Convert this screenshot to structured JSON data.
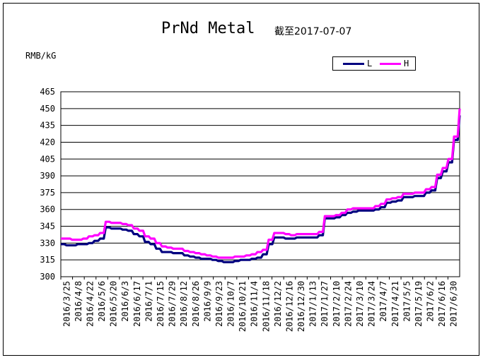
{
  "chart_data": {
    "type": "line",
    "title": "PrNd Metal",
    "subtitle": "截至2017-07-07",
    "ylabel": "RMB/kG",
    "ylim": [
      300,
      465
    ],
    "yticks": [
      300,
      315,
      330,
      345,
      360,
      375,
      390,
      405,
      420,
      435,
      450,
      465
    ],
    "grid": true,
    "legend_position": "top-right",
    "x_ticks": [
      "2016/3/25",
      "2016/4/8",
      "2016/4/22",
      "2016/5/6",
      "2016/5/20",
      "2016/6/3",
      "2016/6/17",
      "2016/7/1",
      "2016/7/15",
      "2016/7/29",
      "2016/8/12",
      "2016/8/26",
      "2016/9/9",
      "2016/9/23",
      "2016/10/7",
      "2016/10/21",
      "2016/11/4",
      "2016/11/18",
      "2016/12/2",
      "2016/12/16",
      "2016/12/30",
      "2017/1/13",
      "2017/1/27",
      "2017/2/10",
      "2017/2/24",
      "2017/3/10",
      "2017/3/24",
      "2017/4/7",
      "2017/4/21",
      "2017/5/5",
      "2017/5/19",
      "2017/6/2",
      "2017/6/16",
      "2017/6/30"
    ],
    "series": [
      {
        "name": "L",
        "color": "#000080",
        "values": [
          329,
          328,
          328,
          329,
          329,
          330,
          332,
          334,
          344,
          343,
          343,
          342,
          341,
          338,
          336,
          331,
          329,
          325,
          322,
          322,
          321,
          321,
          319,
          318,
          317,
          316,
          316,
          315,
          314,
          313,
          313,
          314,
          315,
          315,
          316,
          317,
          320,
          329,
          335,
          335,
          334,
          334,
          335,
          335,
          335,
          335,
          337,
          352,
          352,
          353,
          355,
          357,
          358,
          359,
          359,
          359,
          360,
          362,
          366,
          367,
          368,
          371,
          371,
          372,
          372,
          375,
          377,
          388,
          394,
          402,
          422,
          444
        ]
      },
      {
        "name": "H",
        "color": "#FF00FF",
        "values": [
          334,
          334,
          333,
          333,
          334,
          336,
          337,
          339,
          349,
          348,
          348,
          347,
          346,
          343,
          341,
          336,
          334,
          330,
          327,
          326,
          325,
          325,
          323,
          322,
          321,
          320,
          319,
          318,
          317,
          317,
          317,
          318,
          318,
          319,
          320,
          322,
          324,
          333,
          339,
          339,
          338,
          337,
          338,
          338,
          338,
          338,
          340,
          354,
          354,
          355,
          357,
          360,
          361,
          361,
          361,
          361,
          363,
          365,
          369,
          370,
          371,
          374,
          374,
          375,
          375,
          378,
          380,
          391,
          397,
          405,
          425,
          450
        ]
      }
    ]
  }
}
